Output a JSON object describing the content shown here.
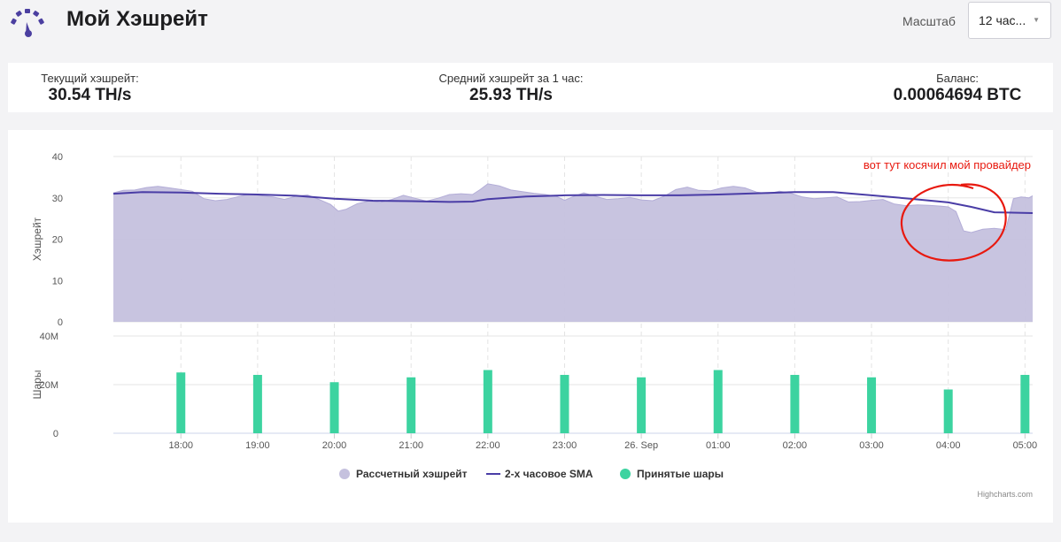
{
  "header": {
    "title": "Мой Хэшрейт",
    "scale_label": "Масштаб",
    "scale_value": "12 час..."
  },
  "stats": {
    "current": {
      "label": "Текущий хэшрейт:",
      "value": "30.54 TH/s"
    },
    "average": {
      "label": "Средний хэшрейт за 1 час:",
      "value": "25.93 TH/s"
    },
    "balance": {
      "label": "Баланс:",
      "value": "0.00064694 BTC"
    }
  },
  "colors": {
    "area": "#c5c1de",
    "sma": "#4a3da6",
    "shares": "#3cd3a0",
    "annotation": "#e8190f",
    "logo": "#4b3fa0"
  },
  "chart_data": {
    "type": "area",
    "x_ticks": [
      "18:00",
      "19:00",
      "20:00",
      "21:00",
      "22:00",
      "23:00",
      "26. Sep",
      "01:00",
      "02:00",
      "03:00",
      "04:00",
      "05:00"
    ],
    "hashrate_axis": {
      "title": "Хэшрейт",
      "ticks": [
        "0",
        "10",
        "20",
        "30",
        "40"
      ],
      "range": [
        0,
        40
      ]
    },
    "shares_axis": {
      "title": "Шары",
      "ticks": [
        "0",
        "20M",
        "40M"
      ],
      "range": [
        0,
        40
      ]
    },
    "x_range": [
      17.12,
      29.1
    ],
    "series": [
      {
        "name": "Рассчетный хэшрейт",
        "type": "area",
        "points": [
          [
            17.12,
            31.2
          ],
          [
            17.25,
            31.8
          ],
          [
            17.4,
            31.9
          ],
          [
            17.55,
            32.5
          ],
          [
            17.7,
            32.8
          ],
          [
            17.85,
            32.4
          ],
          [
            18.0,
            32.0
          ],
          [
            18.15,
            31.6
          ],
          [
            18.3,
            29.8
          ],
          [
            18.45,
            29.3
          ],
          [
            18.6,
            29.6
          ],
          [
            18.75,
            30.3
          ],
          [
            18.9,
            30.9
          ],
          [
            19.05,
            30.5
          ],
          [
            19.2,
            30.2
          ],
          [
            19.35,
            29.6
          ],
          [
            19.5,
            30.4
          ],
          [
            19.65,
            30.7
          ],
          [
            19.8,
            29.6
          ],
          [
            19.95,
            28.4
          ],
          [
            20.05,
            26.8
          ],
          [
            20.15,
            27.2
          ],
          [
            20.3,
            28.6
          ],
          [
            20.45,
            29.2
          ],
          [
            20.6,
            28.9
          ],
          [
            20.75,
            29.6
          ],
          [
            20.9,
            30.6
          ],
          [
            21.05,
            29.9
          ],
          [
            21.2,
            29.2
          ],
          [
            21.35,
            29.9
          ],
          [
            21.5,
            30.8
          ],
          [
            21.65,
            31.0
          ],
          [
            21.8,
            30.8
          ],
          [
            21.9,
            32.0
          ],
          [
            22.0,
            33.4
          ],
          [
            22.15,
            32.9
          ],
          [
            22.3,
            31.9
          ],
          [
            22.45,
            31.5
          ],
          [
            22.6,
            31.1
          ],
          [
            22.75,
            30.8
          ],
          [
            22.9,
            30.3
          ],
          [
            23.0,
            29.4
          ],
          [
            23.1,
            30.2
          ],
          [
            23.25,
            31.2
          ],
          [
            23.4,
            30.4
          ],
          [
            23.55,
            29.6
          ],
          [
            23.7,
            29.8
          ],
          [
            23.85,
            30.1
          ],
          [
            24.0,
            29.5
          ],
          [
            24.15,
            29.3
          ],
          [
            24.3,
            30.4
          ],
          [
            24.45,
            32.0
          ],
          [
            24.6,
            32.6
          ],
          [
            24.75,
            31.8
          ],
          [
            24.9,
            31.7
          ],
          [
            25.05,
            32.4
          ],
          [
            25.2,
            32.8
          ],
          [
            25.35,
            32.4
          ],
          [
            25.5,
            31.4
          ],
          [
            25.65,
            31.0
          ],
          [
            25.8,
            31.6
          ],
          [
            25.95,
            31.1
          ],
          [
            26.1,
            30.2
          ],
          [
            26.25,
            29.8
          ],
          [
            26.4,
            30.0
          ],
          [
            26.55,
            30.2
          ],
          [
            26.7,
            29.0
          ],
          [
            26.85,
            29.1
          ],
          [
            27.0,
            29.4
          ],
          [
            27.15,
            29.6
          ],
          [
            27.3,
            28.5
          ],
          [
            27.45,
            28.1
          ],
          [
            27.6,
            28.3
          ],
          [
            27.75,
            28.2
          ],
          [
            27.9,
            28.0
          ],
          [
            28.0,
            27.8
          ],
          [
            28.1,
            26.7
          ],
          [
            28.2,
            22.0
          ],
          [
            28.3,
            21.6
          ],
          [
            28.45,
            22.4
          ],
          [
            28.6,
            22.6
          ],
          [
            28.75,
            22.3
          ],
          [
            28.85,
            29.8
          ],
          [
            28.95,
            30.2
          ],
          [
            29.05,
            30.0
          ],
          [
            29.1,
            30.5
          ]
        ]
      },
      {
        "name": "2-х часовое SMA",
        "type": "line",
        "points": [
          [
            17.12,
            31.0
          ],
          [
            17.5,
            31.4
          ],
          [
            18.0,
            31.3
          ],
          [
            18.5,
            31.0
          ],
          [
            19.0,
            30.8
          ],
          [
            19.5,
            30.5
          ],
          [
            20.0,
            29.8
          ],
          [
            20.5,
            29.3
          ],
          [
            21.0,
            29.2
          ],
          [
            21.5,
            29.0
          ],
          [
            21.8,
            29.1
          ],
          [
            22.0,
            29.7
          ],
          [
            22.5,
            30.3
          ],
          [
            23.0,
            30.6
          ],
          [
            23.5,
            30.7
          ],
          [
            24.0,
            30.6
          ],
          [
            24.5,
            30.6
          ],
          [
            25.0,
            30.8
          ],
          [
            25.5,
            31.1
          ],
          [
            26.0,
            31.4
          ],
          [
            26.5,
            31.4
          ],
          [
            27.0,
            30.6
          ],
          [
            27.5,
            29.8
          ],
          [
            28.0,
            28.9
          ],
          [
            28.3,
            27.8
          ],
          [
            28.6,
            26.5
          ],
          [
            29.1,
            26.3
          ]
        ]
      },
      {
        "name": "Принятые шары",
        "type": "column",
        "points": [
          [
            18.0,
            25
          ],
          [
            19.0,
            24
          ],
          [
            20.0,
            21
          ],
          [
            21.0,
            23
          ],
          [
            22.0,
            26
          ],
          [
            23.0,
            24
          ],
          [
            24.0,
            23
          ],
          [
            25.0,
            26
          ],
          [
            26.0,
            24
          ],
          [
            27.0,
            23
          ],
          [
            28.0,
            18
          ],
          [
            29.0,
            24
          ]
        ]
      }
    ],
    "annotation": "вот тут косячил мой провайдер",
    "credits": "Highcharts.com",
    "legend": "bottom-center"
  }
}
